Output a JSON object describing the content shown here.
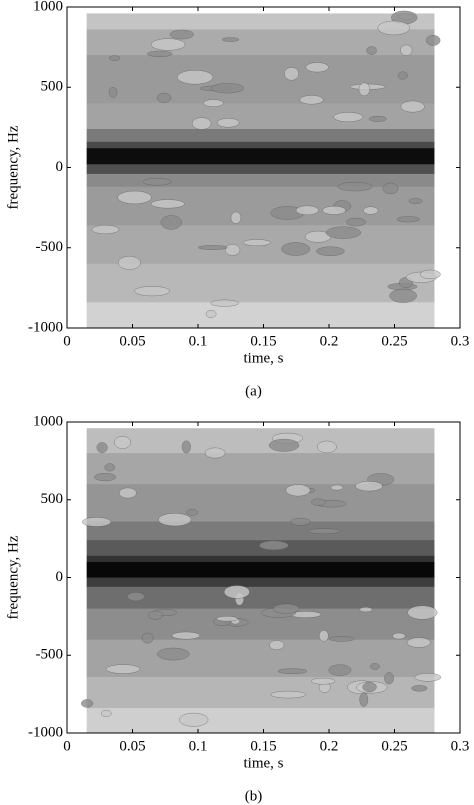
{
  "chart_data": [
    {
      "type": "contour",
      "xlabel": "time, s",
      "ylabel": "frequency, Hz",
      "caption": "(a)",
      "xlim": [
        0,
        0.3
      ],
      "ylim": [
        -1000,
        1000
      ],
      "xticks": [
        0,
        0.05,
        0.1,
        0.15,
        0.2,
        0.25,
        0.3
      ],
      "yticks": [
        -1000,
        -500,
        0,
        500,
        1000
      ],
      "grid": false
    },
    {
      "type": "contour",
      "xlabel": "time, s",
      "ylabel": "frequency, Hz",
      "caption": "(b)",
      "xlim": [
        0,
        0.3
      ],
      "ylim": [
        -1000,
        1000
      ],
      "xticks": [
        0,
        0.05,
        0.1,
        0.15,
        0.2,
        0.25,
        0.3
      ],
      "yticks": [
        -1000,
        -500,
        0,
        500,
        1000
      ],
      "grid": false
    }
  ]
}
